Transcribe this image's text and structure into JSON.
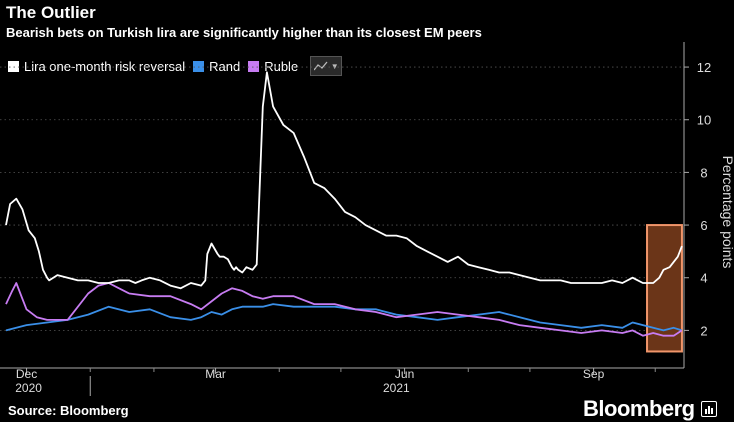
{
  "header": {
    "title": "The Outlier",
    "subtitle": "Bearish bets on Turkish lira are significantly higher than its closest EM peers"
  },
  "footer": {
    "source": "Source: Bloomberg",
    "brand": "Bloomberg"
  },
  "colors": {
    "background": "#000000",
    "lira": "#ffffff",
    "rand": "#3a8fe8",
    "ruble": "#c77cf2",
    "highlight_fill": "#6b3518",
    "highlight_stroke": "#f0956a"
  },
  "chart_data": {
    "type": "line",
    "title": "The Outlier",
    "subtitle": "Bearish bets on Turkish lira are significantly higher than its closest EM peers",
    "xlabel": "",
    "ylabel": "Percentage points",
    "ylim": [
      0.8,
      12.8
    ],
    "yticks": [
      2,
      4,
      6,
      8,
      10,
      12
    ],
    "x_range": [
      0,
      330
    ],
    "x_unit": "days since 2020-11-20 (approx.)",
    "x_month_ticks": [
      {
        "x": 10,
        "label": "Dec"
      },
      {
        "x": 102,
        "label": "Mar"
      },
      {
        "x": 194,
        "label": "Jun"
      },
      {
        "x": 286,
        "label": "Sep"
      }
    ],
    "x_minor_ticks": [
      41,
      72,
      133,
      163,
      225,
      255,
      316
    ],
    "x_year_labels": [
      {
        "x": 11,
        "label": "2020"
      },
      {
        "x": 190,
        "label": "2021"
      }
    ],
    "x_year_divider": 41,
    "legend": {
      "position": "top-left"
    },
    "highlight": {
      "x0": 312,
      "x1": 329,
      "y0": 1.2,
      "y1": 6.0,
      "note": "outlier highlight box"
    },
    "series": [
      {
        "name": "Lira one-month risk reversal",
        "color": "#ffffff",
        "x": [
          0,
          2,
          5,
          8,
          11,
          14,
          16,
          18,
          20,
          21,
          23,
          25,
          30,
          35,
          40,
          45,
          50,
          55,
          60,
          63,
          66,
          70,
          75,
          80,
          85,
          90,
          95,
          97,
          98,
          100,
          103,
          104,
          106,
          108,
          110,
          111,
          112,
          113,
          115,
          117,
          120,
          122,
          125,
          127,
          130,
          135,
          140,
          145,
          150,
          155,
          160,
          165,
          170,
          175,
          180,
          185,
          190,
          195,
          200,
          205,
          210,
          215,
          220,
          225,
          230,
          235,
          240,
          245,
          250,
          255,
          260,
          265,
          270,
          275,
          280,
          285,
          290,
          295,
          300,
          305,
          310,
          315,
          318,
          320,
          323,
          325,
          327,
          329
        ],
        "y": [
          6.0,
          6.8,
          7.0,
          6.6,
          5.8,
          5.5,
          5.0,
          4.3,
          4.0,
          3.9,
          4.0,
          4.1,
          4.0,
          3.9,
          3.9,
          3.8,
          3.8,
          3.9,
          3.9,
          3.8,
          3.9,
          4.0,
          3.9,
          3.7,
          3.6,
          3.8,
          3.7,
          3.9,
          4.9,
          5.3,
          4.9,
          4.8,
          4.8,
          4.7,
          4.4,
          4.3,
          4.4,
          4.3,
          4.2,
          4.4,
          4.3,
          4.5,
          10.5,
          11.8,
          10.5,
          9.8,
          9.5,
          8.6,
          7.6,
          7.4,
          7.0,
          6.5,
          6.3,
          6.0,
          5.8,
          5.6,
          5.6,
          5.5,
          5.2,
          5.0,
          4.8,
          4.6,
          4.8,
          4.5,
          4.4,
          4.3,
          4.2,
          4.2,
          4.1,
          4.0,
          3.9,
          3.9,
          3.9,
          3.8,
          3.8,
          3.8,
          3.8,
          3.9,
          3.8,
          4.0,
          3.8,
          3.8,
          4.0,
          4.3,
          4.4,
          4.6,
          4.8,
          5.2
        ]
      },
      {
        "name": "Rand",
        "color": "#3a8fe8",
        "x": [
          0,
          10,
          20,
          30,
          40,
          50,
          60,
          70,
          80,
          90,
          95,
          100,
          105,
          110,
          115,
          120,
          125,
          130,
          140,
          150,
          160,
          170,
          180,
          190,
          200,
          210,
          220,
          230,
          240,
          250,
          260,
          270,
          280,
          290,
          300,
          305,
          310,
          315,
          320,
          325,
          329
        ],
        "y": [
          2.0,
          2.2,
          2.3,
          2.4,
          2.6,
          2.9,
          2.7,
          2.8,
          2.5,
          2.4,
          2.5,
          2.7,
          2.6,
          2.8,
          2.9,
          2.9,
          2.9,
          3.0,
          2.9,
          2.9,
          2.9,
          2.8,
          2.8,
          2.6,
          2.5,
          2.4,
          2.5,
          2.6,
          2.7,
          2.5,
          2.3,
          2.2,
          2.1,
          2.2,
          2.1,
          2.3,
          2.2,
          2.1,
          2.0,
          2.1,
          2.0
        ]
      },
      {
        "name": "Ruble",
        "color": "#c77cf2",
        "x": [
          0,
          3,
          5,
          8,
          10,
          15,
          20,
          25,
          30,
          40,
          45,
          50,
          55,
          60,
          70,
          80,
          90,
          95,
          100,
          105,
          110,
          115,
          120,
          125,
          130,
          140,
          150,
          160,
          170,
          180,
          190,
          200,
          210,
          220,
          230,
          240,
          250,
          260,
          270,
          280,
          290,
          300,
          305,
          310,
          315,
          320,
          325,
          329
        ],
        "y": [
          3.0,
          3.5,
          3.8,
          3.2,
          2.8,
          2.5,
          2.4,
          2.4,
          2.4,
          3.4,
          3.7,
          3.8,
          3.6,
          3.4,
          3.3,
          3.3,
          3.0,
          2.8,
          3.1,
          3.4,
          3.6,
          3.5,
          3.3,
          3.2,
          3.3,
          3.3,
          3.0,
          3.0,
          2.8,
          2.7,
          2.5,
          2.6,
          2.7,
          2.6,
          2.5,
          2.4,
          2.2,
          2.1,
          2.0,
          1.9,
          2.0,
          1.9,
          2.0,
          1.8,
          1.9,
          1.8,
          1.8,
          2.0
        ]
      }
    ]
  }
}
